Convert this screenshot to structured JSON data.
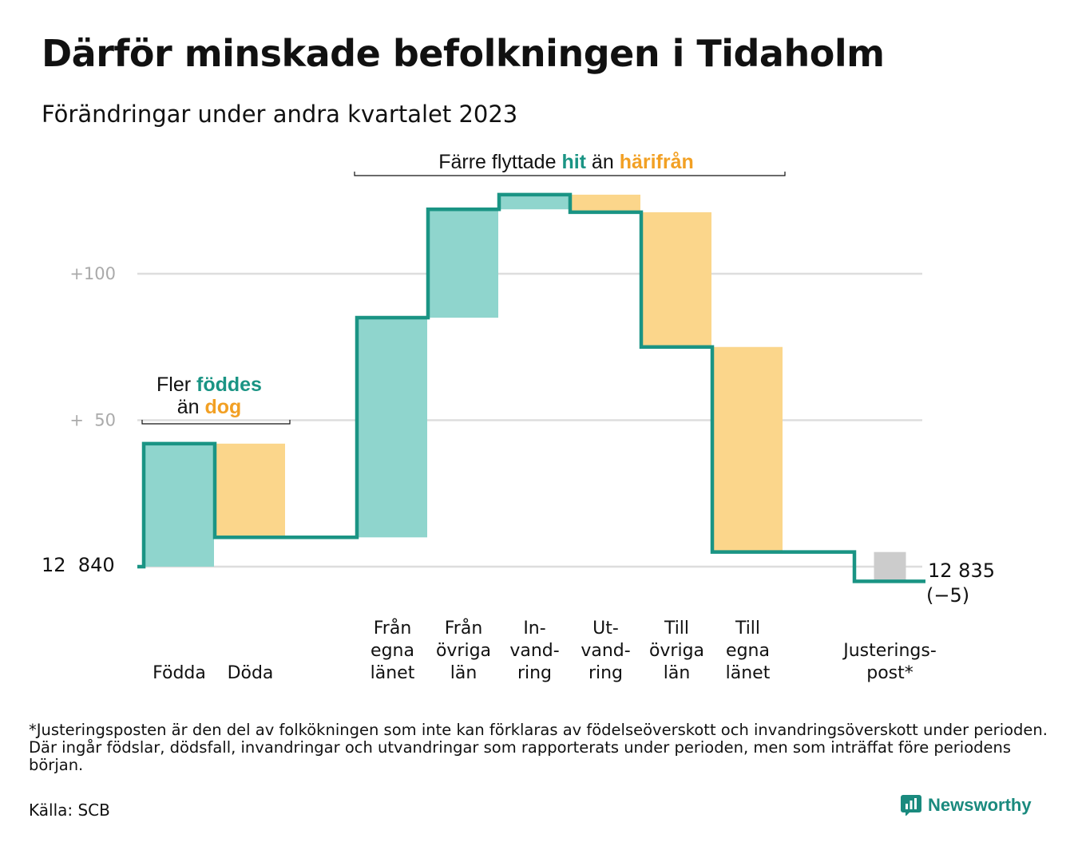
{
  "title": "Därför minskade befolkningen i Tidaholm",
  "subtitle": "Förändringar under andra kvartalet 2023",
  "colors": {
    "increase": "#8fd5cd",
    "decrease": "#fbd68b",
    "adjustment": "#cccccc",
    "line": "#1a9484",
    "teal_text": "#1a9484",
    "orange_text": "#f2a024",
    "grid": "#dddddd"
  },
  "chart_data": {
    "type": "waterfall",
    "start_value": 12840,
    "start_label": "12  840",
    "end_value": 12835,
    "end_label": "12 835",
    "end_change_label": "(−5)",
    "y_ticks": [
      {
        "value": 12890,
        "label": "+  50"
      },
      {
        "value": 12940,
        "label": "+100"
      }
    ],
    "ylim": [
      12832,
      12980
    ],
    "steps": [
      {
        "category": "Födda",
        "label_lines": [
          "Födda"
        ],
        "change": 42,
        "kind": "increase"
      },
      {
        "category": "Döda",
        "label_lines": [
          "Döda"
        ],
        "change": -32,
        "kind": "decrease"
      },
      {
        "category": "",
        "label_lines": [],
        "change": 0,
        "kind": "gap"
      },
      {
        "category": "Från egna länet",
        "label_lines": [
          "Från",
          "egna",
          "länet"
        ],
        "change": 75,
        "kind": "increase"
      },
      {
        "category": "Från övriga län",
        "label_lines": [
          "Från",
          "övriga",
          "län"
        ],
        "change": 37,
        "kind": "increase"
      },
      {
        "category": "Invandring",
        "label_lines": [
          "In-",
          "vand-",
          "ring"
        ],
        "change": 5,
        "kind": "increase"
      },
      {
        "category": "Utvandring",
        "label_lines": [
          "Ut-",
          "vand-",
          "ring"
        ],
        "change": -6,
        "kind": "decrease"
      },
      {
        "category": "Till övriga län",
        "label_lines": [
          "Till",
          "övriga",
          "län"
        ],
        "change": -46,
        "kind": "decrease"
      },
      {
        "category": "Till egna länet",
        "label_lines": [
          "Till",
          "egna",
          "länet"
        ],
        "change": -70,
        "kind": "decrease"
      },
      {
        "category": "",
        "label_lines": [],
        "change": 0,
        "kind": "gap"
      },
      {
        "category": "Justeringspost*",
        "label_lines": [
          "Justerings-",
          "post*"
        ],
        "change": -10,
        "kind": "adjustment"
      }
    ],
    "annotations": [
      {
        "name": "births-annotation",
        "line1": [
          "Fler ",
          "föddes"
        ],
        "line2": [
          "än ",
          "dog"
        ],
        "span": [
          0,
          1
        ]
      },
      {
        "name": "migration-annotation",
        "line1": [
          "Färre flyttade ",
          "hit",
          " än ",
          "härifrån"
        ],
        "span": [
          3,
          8
        ]
      }
    ]
  },
  "footnote": "*Justeringsposten är den del av folkökningen som inte kan förklaras av födelseöverskott och invandringsöverskott under perioden. Där ingår födslar, dödsfall, invandringar och utvandringar som rapporterats under perioden, men som inträffat före periodens början.",
  "source": "Källa: SCB",
  "brand": {
    "name": "Newsworthy",
    "icon": "newsworthy-logo-icon"
  }
}
